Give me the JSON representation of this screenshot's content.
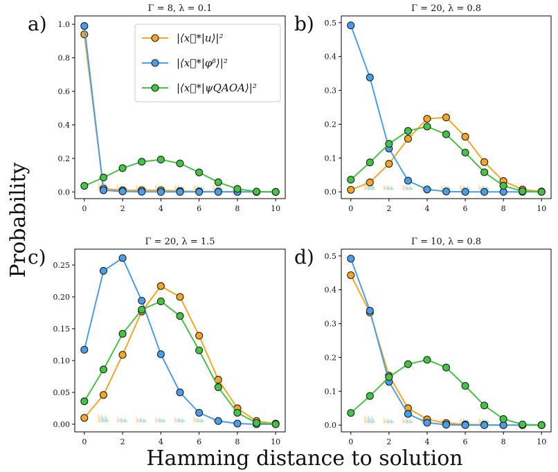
{
  "figure": {
    "ylabel": "Probability",
    "xlabel": "Hamming distance to solution"
  },
  "legend": [
    {
      "label": "|⟨x⃗*|u⟩|²",
      "color": "#f5a623"
    },
    {
      "label": "|⟨x⃗*|φᵝ⟩|²",
      "color": "#4a9de8"
    },
    {
      "label": "|⟨x⃗*|ψQAOA⟩|²",
      "color": "#44c444"
    }
  ],
  "chart_data": [
    {
      "type": "line",
      "panel": "a)",
      "title": "Γ = 8, λ = 0.1",
      "x": [
        0,
        1,
        2,
        3,
        4,
        5,
        6,
        7,
        8,
        9,
        10
      ],
      "ylim": [
        -0.04,
        1.05
      ],
      "yticks": [
        0.0,
        0.2,
        0.4,
        0.6,
        0.8,
        1.0
      ],
      "ytick_labels": [
        "0.0",
        "0.2",
        "0.4",
        "0.6",
        "0.8",
        "1.0"
      ],
      "xticks": [
        0,
        2,
        4,
        6,
        8,
        10
      ],
      "series": [
        {
          "name": "|⟨x⃗*|u⟩|²",
          "color": "#f5a623",
          "values": [
            0.94,
            0.02,
            0.01,
            0.01,
            0.01,
            0.005,
            0.003,
            0.002,
            0.001,
            0.0,
            0.0
          ]
        },
        {
          "name": "|⟨x⃗*|φᵝ⟩|²",
          "color": "#4a9de8",
          "values": [
            0.99,
            0.01,
            0.003,
            0.001,
            0.0,
            0.0,
            0.0,
            0.0,
            0.0,
            0.0,
            0.0
          ]
        },
        {
          "name": "|⟨x⃗*|ψQAOA⟩|²",
          "color": "#44c444",
          "values": [
            0.036,
            0.086,
            0.142,
            0.18,
            0.193,
            0.17,
            0.116,
            0.058,
            0.018,
            0.002,
            0.0
          ]
        }
      ]
    },
    {
      "type": "line",
      "panel": "b)",
      "title": "Γ = 20, λ = 0.8",
      "x": [
        0,
        1,
        2,
        3,
        4,
        5,
        6,
        7,
        8,
        9,
        10
      ],
      "ylim": [
        -0.02,
        0.52
      ],
      "yticks": [
        0.0,
        0.1,
        0.2,
        0.3,
        0.4,
        0.5
      ],
      "ytick_labels": [
        "0.0",
        "0.1",
        "0.2",
        "0.3",
        "0.4",
        "0.5"
      ],
      "xticks": [
        0,
        2,
        4,
        6,
        8,
        10
      ],
      "series": [
        {
          "name": "|⟨x⃗*|u⟩|²",
          "color": "#f5a623",
          "values": [
            0.006,
            0.028,
            0.083,
            0.157,
            0.216,
            0.22,
            0.163,
            0.088,
            0.032,
            0.007,
            0.001
          ]
        },
        {
          "name": "|⟨x⃗*|φᵝ⟩|²",
          "color": "#4a9de8",
          "values": [
            0.492,
            0.338,
            0.128,
            0.033,
            0.007,
            0.001,
            0.0,
            0.0,
            0.0,
            0.0,
            0.0
          ]
        },
        {
          "name": "|⟨x⃗*|ψQAOA⟩|²",
          "color": "#44c444",
          "values": [
            0.036,
            0.087,
            0.142,
            0.18,
            0.193,
            0.17,
            0.116,
            0.058,
            0.018,
            0.002,
            0.0
          ]
        }
      ]
    },
    {
      "type": "line",
      "panel": "c)",
      "title": "Γ = 20, λ = 1.5",
      "x": [
        0,
        1,
        2,
        3,
        4,
        5,
        6,
        7,
        8,
        9,
        10
      ],
      "ylim": [
        -0.012,
        0.275
      ],
      "yticks": [
        0.0,
        0.05,
        0.1,
        0.15,
        0.2,
        0.25
      ],
      "ytick_labels": [
        "0.00",
        "0.05",
        "0.10",
        "0.15",
        "0.20",
        "0.25"
      ],
      "xticks": [
        0,
        2,
        4,
        6,
        8,
        10
      ],
      "series": [
        {
          "name": "|⟨x⃗*|u⟩|²",
          "color": "#f5a623",
          "values": [
            0.01,
            0.046,
            0.109,
            0.177,
            0.217,
            0.2,
            0.139,
            0.07,
            0.025,
            0.005,
            0.001
          ]
        },
        {
          "name": "|⟨x⃗*|φᵝ⟩|²",
          "color": "#4a9de8",
          "values": [
            0.117,
            0.241,
            0.261,
            0.194,
            0.11,
            0.05,
            0.018,
            0.005,
            0.001,
            0.0,
            0.0
          ]
        },
        {
          "name": "|⟨x⃗*|ψQAOA⟩|²",
          "color": "#44c444",
          "values": [
            0.036,
            0.086,
            0.142,
            0.18,
            0.193,
            0.17,
            0.116,
            0.058,
            0.018,
            0.002,
            0.0
          ]
        }
      ]
    },
    {
      "type": "line",
      "panel": "d)",
      "title": "Γ = 10, λ = 0.8",
      "x": [
        0,
        1,
        2,
        3,
        4,
        5,
        6,
        7,
        8,
        9,
        10
      ],
      "ylim": [
        -0.02,
        0.52
      ],
      "yticks": [
        0.0,
        0.1,
        0.2,
        0.3,
        0.4,
        0.5
      ],
      "ytick_labels": [
        "0.0",
        "0.1",
        "0.2",
        "0.3",
        "0.4",
        "0.5"
      ],
      "xticks": [
        0,
        2,
        4,
        6,
        8,
        10
      ],
      "series": [
        {
          "name": "|⟨x⃗*|u⟩|²",
          "color": "#f5a623",
          "values": [
            0.443,
            0.333,
            0.146,
            0.05,
            0.017,
            0.006,
            0.002,
            0.001,
            0.0,
            0.0,
            0.0
          ]
        },
        {
          "name": "|⟨x⃗*|φᵝ⟩|²",
          "color": "#4a9de8",
          "values": [
            0.492,
            0.338,
            0.128,
            0.033,
            0.007,
            0.001,
            0.0,
            0.0,
            0.0,
            0.0,
            0.0
          ]
        },
        {
          "name": "|⟨x⃗*|ψQAOA⟩|²",
          "color": "#44c444",
          "values": [
            0.036,
            0.086,
            0.142,
            0.18,
            0.193,
            0.17,
            0.116,
            0.058,
            0.018,
            0.002,
            0.0
          ]
        }
      ]
    }
  ]
}
